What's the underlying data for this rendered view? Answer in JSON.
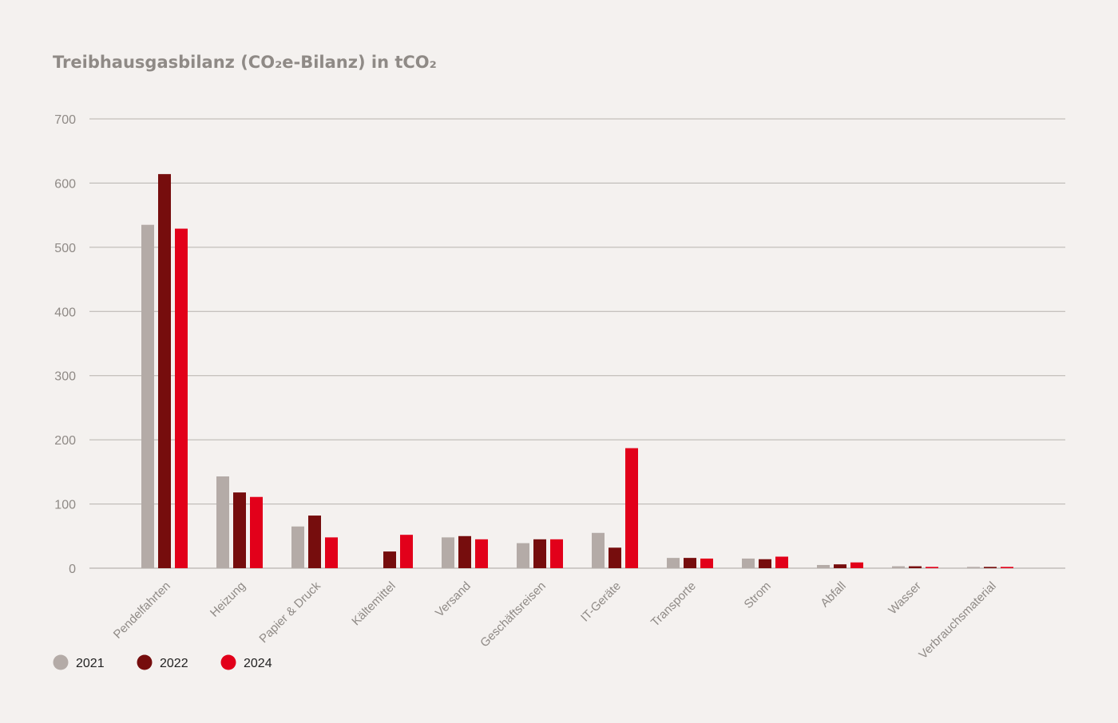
{
  "chart_data": {
    "type": "bar",
    "title": "Treibhausgasbilanz (CO₂e-Bilanz) in tCO₂",
    "xlabel": "",
    "ylabel": "",
    "ylim": [
      0,
      700
    ],
    "yticks": [
      0,
      100,
      200,
      300,
      400,
      500,
      600,
      700
    ],
    "grid": true,
    "legend_position": "bottom-left",
    "categories": [
      "Pendelfahrten",
      "Heizung",
      "Papier & Druck",
      "Kältemittel",
      "Versand",
      "Geschäftsreisen",
      "IT-Geräte",
      "Transporte",
      "Strom",
      "Abfall",
      "Wasser",
      "Verbrauchsmaterial"
    ],
    "series": [
      {
        "name": "2021",
        "color": "#b4aba7",
        "values": [
          535,
          143,
          65,
          0,
          48,
          39,
          55,
          16,
          15,
          5,
          3,
          2
        ]
      },
      {
        "name": "2022",
        "color": "#760d0d",
        "values": [
          614,
          118,
          82,
          26,
          50,
          45,
          32,
          16,
          14,
          6,
          3,
          2
        ]
      },
      {
        "name": "2024",
        "color": "#e2001a",
        "values": [
          529,
          111,
          48,
          52,
          45,
          45,
          187,
          15,
          18,
          9,
          2,
          2
        ]
      }
    ]
  }
}
